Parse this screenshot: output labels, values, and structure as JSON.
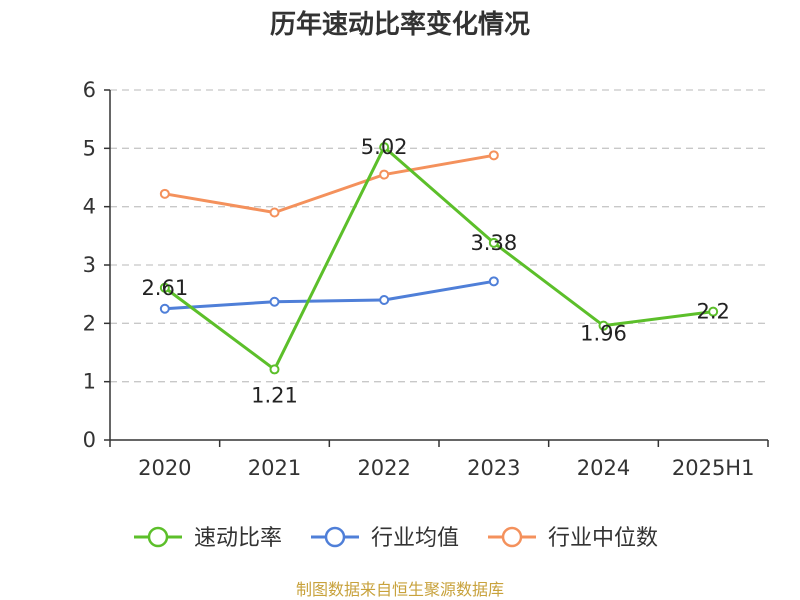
{
  "chart_data": {
    "type": "line",
    "title": "历年速动比率变化情况",
    "categories": [
      "2020",
      "2021",
      "2022",
      "2023",
      "2024",
      "2025H1"
    ],
    "ylim": [
      0,
      6
    ],
    "yticks": [
      "0",
      "1",
      "2",
      "3",
      "4",
      "5",
      "6"
    ],
    "grid": true,
    "legend_position": "bottom",
    "series": [
      {
        "name": "速动比率",
        "color": "#5cbf2a",
        "values": [
          2.61,
          1.21,
          5.02,
          3.38,
          1.96,
          2.2
        ],
        "labels": [
          "2.61",
          "1.21",
          "5.02",
          "3.38",
          "1.96",
          "2.2"
        ]
      },
      {
        "name": "行业均值",
        "color": "#4f7fd8",
        "values": [
          2.25,
          2.37,
          2.4,
          2.72,
          null,
          null
        ]
      },
      {
        "name": "行业中位数",
        "color": "#f4915c",
        "values": [
          4.22,
          3.9,
          4.55,
          4.88,
          null,
          null
        ]
      }
    ]
  },
  "source": "制图数据来自恒生聚源数据库"
}
